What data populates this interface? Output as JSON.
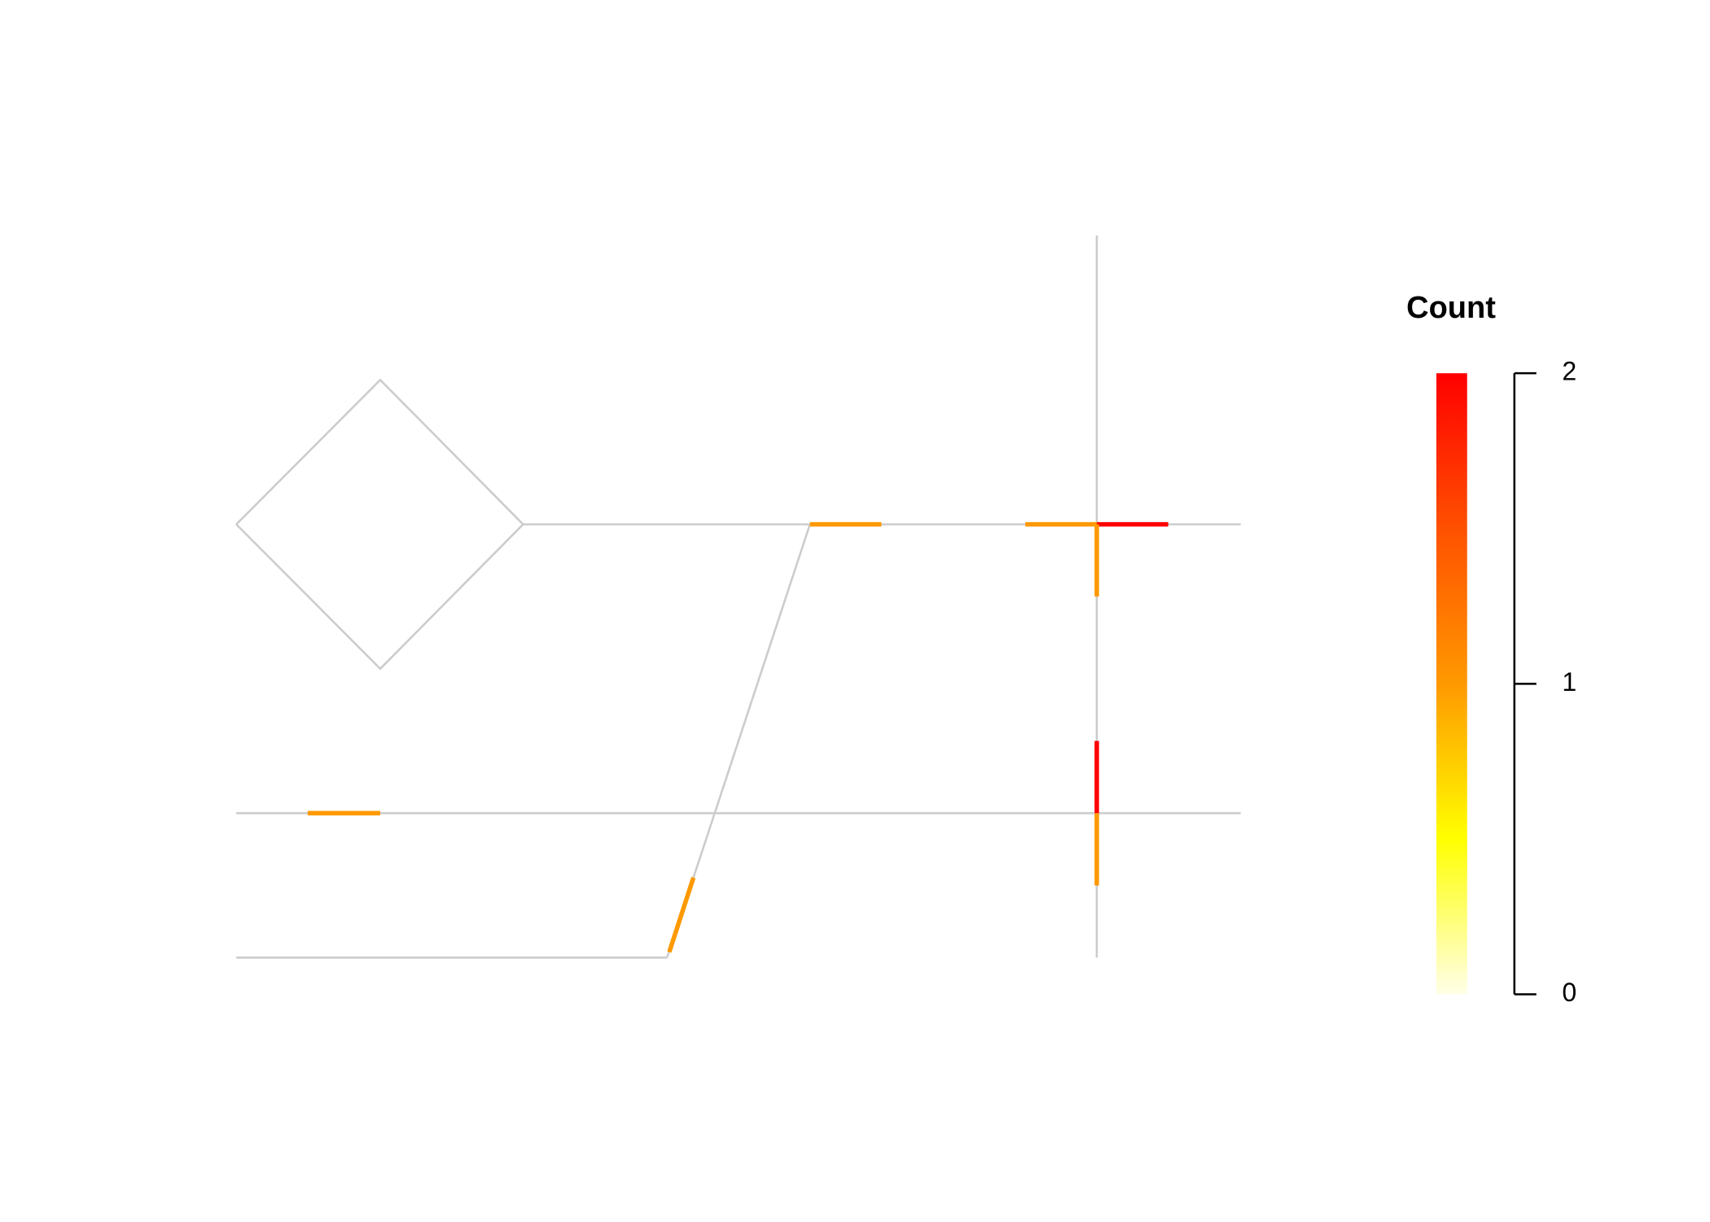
{
  "chart_data": {
    "type": "network",
    "legend_title": "Count",
    "values": [
      1,
      1,
      2,
      1,
      2,
      1,
      1,
      1
    ],
    "colors": [
      "#ffffe8",
      "#ffff00",
      "#ff9900",
      "#ff5000",
      "#ff0000"
    ],
    "clim": [
      0,
      2
    ],
    "cticks": [
      0,
      1,
      2
    ]
  }
}
